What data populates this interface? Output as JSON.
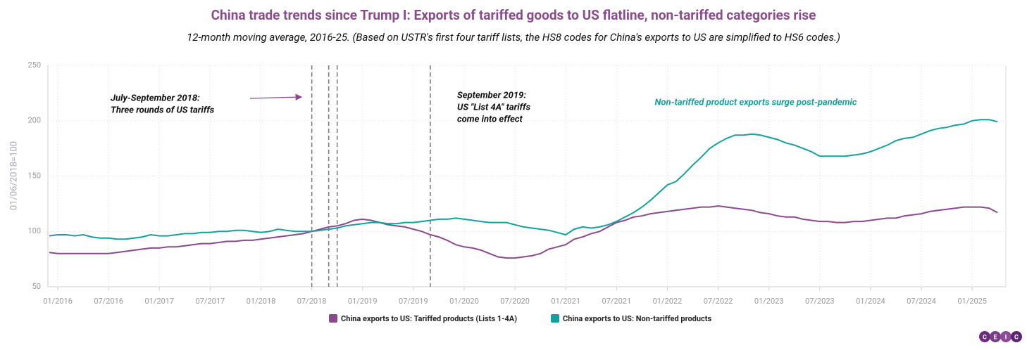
{
  "chart_data": {
    "type": "line",
    "title": "China trade trends since Trump I: Exports of tariffed goods to US flatline, non-tariffed categories rise",
    "subtitle": "12-month moving average, 2016-25. (Based on USTR's first four tariff lists, the HS8 codes for China's exports to US are simplified to HS6 codes.)",
    "ylabel": "01/06/2018=100",
    "x": [
      "12/2015",
      "01/2016",
      "02/2016",
      "03/2016",
      "04/2016",
      "05/2016",
      "06/2016",
      "07/2016",
      "08/2016",
      "09/2016",
      "10/2016",
      "11/2016",
      "12/2016",
      "01/2017",
      "02/2017",
      "03/2017",
      "04/2017",
      "05/2017",
      "06/2017",
      "07/2017",
      "08/2017",
      "09/2017",
      "10/2017",
      "11/2017",
      "12/2017",
      "01/2018",
      "02/2018",
      "03/2018",
      "04/2018",
      "05/2018",
      "06/2018",
      "07/2018",
      "08/2018",
      "09/2018",
      "10/2018",
      "11/2018",
      "12/2018",
      "01/2019",
      "02/2019",
      "03/2019",
      "04/2019",
      "05/2019",
      "06/2019",
      "07/2019",
      "08/2019",
      "09/2019",
      "10/2019",
      "11/2019",
      "12/2019",
      "01/2020",
      "02/2020",
      "03/2020",
      "04/2020",
      "05/2020",
      "06/2020",
      "07/2020",
      "08/2020",
      "09/2020",
      "10/2020",
      "11/2020",
      "12/2020",
      "01/2021",
      "02/2021",
      "03/2021",
      "04/2021",
      "05/2021",
      "06/2021",
      "07/2021",
      "08/2021",
      "09/2021",
      "10/2021",
      "11/2021",
      "12/2021",
      "01/2022",
      "02/2022",
      "03/2022",
      "04/2022",
      "05/2022",
      "06/2022",
      "07/2022",
      "08/2022",
      "09/2022",
      "10/2022",
      "11/2022",
      "12/2022",
      "01/2023",
      "02/2023",
      "03/2023",
      "04/2023",
      "05/2023",
      "06/2023",
      "07/2023",
      "08/2023",
      "09/2023",
      "10/2023",
      "11/2023",
      "12/2023",
      "01/2024",
      "02/2024",
      "03/2024",
      "04/2024",
      "05/2024",
      "06/2024",
      "07/2024",
      "08/2024",
      "09/2024",
      "10/2024",
      "11/2024",
      "12/2024",
      "01/2025",
      "02/2025",
      "03/2025",
      "04/2025"
    ],
    "series": [
      {
        "name": "China exports to US: Tariffed products (Lists 1-4A)",
        "color": "#8b4a8e",
        "values": [
          81,
          80,
          80,
          80,
          80,
          80,
          80,
          80,
          81,
          82,
          83,
          84,
          85,
          85,
          86,
          86,
          87,
          88,
          89,
          89,
          90,
          91,
          91,
          92,
          92,
          93,
          94,
          95,
          96,
          97,
          98,
          100,
          102,
          104,
          105,
          107,
          110,
          111,
          110,
          108,
          106,
          105,
          104,
          102,
          100,
          97,
          95,
          92,
          88,
          86,
          85,
          83,
          80,
          77,
          76,
          76,
          77,
          78,
          80,
          84,
          86,
          88,
          93,
          95,
          98,
          100,
          104,
          108,
          110,
          113,
          114,
          116,
          117,
          118,
          119,
          120,
          121,
          122,
          122,
          123,
          122,
          121,
          120,
          119,
          117,
          116,
          114,
          113,
          113,
          111,
          110,
          109,
          109,
          108,
          108,
          109,
          109,
          110,
          111,
          112,
          112,
          114,
          115,
          116,
          118,
          119,
          120,
          121,
          122,
          122,
          122,
          121,
          117
        ]
      },
      {
        "name": "China exports to US: Non-tariffed products",
        "color": "#15a0a0",
        "values": [
          96,
          97,
          97,
          96,
          97,
          95,
          94,
          94,
          93,
          93,
          94,
          95,
          97,
          96,
          96,
          97,
          98,
          98,
          99,
          99,
          100,
          100,
          101,
          101,
          100,
          99,
          100,
          102,
          101,
          100,
          100,
          100,
          101,
          102,
          103,
          105,
          106,
          107,
          108,
          108,
          107,
          107,
          108,
          108,
          109,
          110,
          111,
          111,
          112,
          111,
          110,
          109,
          108,
          108,
          108,
          106,
          104,
          103,
          102,
          101,
          99,
          97,
          102,
          104,
          103,
          104,
          106,
          109,
          113,
          117,
          122,
          128,
          135,
          142,
          145,
          152,
          160,
          167,
          175,
          180,
          184,
          187,
          187,
          188,
          187,
          185,
          183,
          180,
          178,
          175,
          172,
          168,
          168,
          168,
          168,
          169,
          170,
          172,
          175,
          178,
          182,
          184,
          185,
          188,
          191,
          193,
          194,
          196,
          197,
          200,
          201,
          201,
          199
        ]
      }
    ],
    "ylim": [
      50,
      250
    ],
    "yticks": [
      50,
      100,
      150,
      200,
      250
    ],
    "xticks": [
      "01/2016",
      "07/2016",
      "01/2017",
      "07/2017",
      "01/2018",
      "07/2018",
      "01/2019",
      "07/2019",
      "01/2020",
      "07/2020",
      "01/2021",
      "07/2021",
      "01/2022",
      "07/2022",
      "01/2023",
      "07/2023",
      "01/2024",
      "07/2024",
      "01/2025"
    ],
    "grid": true,
    "vlines": [
      "07/2018",
      "09/2018",
      "10/2018",
      "09/2019"
    ],
    "annotations": [
      {
        "text": [
          "July-September 2018:",
          "Three rounds of US tariffs"
        ],
        "color": "#111111"
      },
      {
        "text": [
          "September 2019:",
          "US \"List 4A\" tariffs",
          "come into effect"
        ],
        "color": "#111111"
      },
      {
        "text": [
          "Non-tariffed product exports surge post-pandemic"
        ],
        "color": "#15a0a0"
      }
    ],
    "legend": "bottom",
    "logo": [
      "C",
      "E",
      "I",
      "C"
    ]
  }
}
